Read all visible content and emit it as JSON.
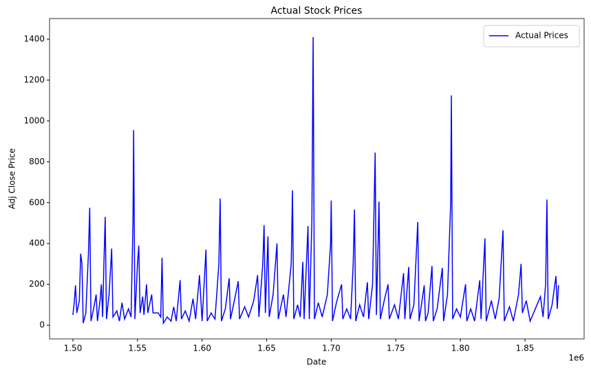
{
  "chart_data": {
    "type": "line",
    "title": "Actual Stock Prices",
    "x_label": "Date",
    "y_label": "Adj Close Price",
    "x_offset_label": "1e6",
    "x": [
      1500000,
      1501000,
      1502000,
      1503000,
      1505000,
      1506000,
      1507000,
      1508000,
      1510000,
      1512000,
      1513000,
      1514000,
      1516000,
      1518000,
      1519000,
      1521000,
      1522000,
      1523000,
      1524000,
      1525000,
      1526000,
      1528000,
      1530000,
      1531000,
      1534000,
      1536000,
      1538000,
      1540000,
      1543000,
      1545000,
      1546500,
      1547000,
      1548000,
      1550000,
      1551000,
      1552000,
      1554000,
      1555000,
      1557000,
      1558000,
      1561000,
      1562000,
      1566000,
      1568000,
      1569000,
      1570000,
      1573000,
      1576000,
      1578000,
      1580000,
      1583000,
      1584000,
      1587000,
      1590000,
      1593000,
      1595000,
      1598000,
      1600000,
      1602000,
      1603000,
      1604000,
      1607000,
      1610000,
      1613000,
      1614000,
      1615000,
      1618000,
      1621000,
      1622000,
      1625000,
      1628000,
      1629000,
      1633000,
      1636000,
      1640000,
      1643000,
      1644000,
      1647000,
      1648000,
      1649000,
      1651000,
      1652000,
      1655000,
      1658000,
      1659000,
      1663000,
      1665000,
      1669000,
      1670000,
      1671000,
      1674000,
      1676000,
      1678000,
      1679000,
      1682000,
      1683000,
      1685000,
      1686000,
      1687000,
      1690000,
      1693000,
      1697000,
      1699500,
      1700000,
      1701000,
      1704000,
      1708000,
      1709000,
      1712000,
      1715000,
      1717000,
      1718000,
      1719000,
      1722000,
      1725000,
      1728000,
      1729000,
      1732000,
      1734000,
      1735000,
      1737000,
      1738000,
      1741000,
      1744000,
      1745000,
      1749000,
      1752000,
      1756000,
      1757000,
      1760000,
      1761000,
      1764000,
      1767000,
      1768000,
      1772000,
      1773000,
      1775000,
      1778000,
      1779000,
      1782000,
      1786000,
      1787000,
      1790000,
      1792500,
      1793000,
      1794000,
      1797000,
      1800000,
      1804000,
      1805000,
      1808000,
      1811000,
      1815000,
      1816000,
      1819000,
      1820000,
      1824000,
      1827000,
      1830000,
      1833000,
      1834000,
      1838000,
      1841000,
      1845000,
      1847000,
      1848000,
      1851000,
      1854000,
      1858000,
      1862000,
      1864000,
      1866000,
      1867000,
      1868000,
      1871000,
      1874000,
      1875000,
      1876000
    ],
    "series": [
      {
        "name": "Actual Prices",
        "color": "#0000ff",
        "values": [
          50,
          110,
          195,
          60,
          120,
          350,
          300,
          10,
          60,
          350,
          575,
          20,
          80,
          150,
          20,
          120,
          200,
          40,
          300,
          530,
          30,
          150,
          375,
          40,
          70,
          20,
          110,
          30,
          80,
          40,
          500,
          955,
          30,
          300,
          390,
          60,
          140,
          50,
          200,
          60,
          150,
          60,
          60,
          40,
          330,
          10,
          40,
          20,
          90,
          20,
          220,
          30,
          70,
          20,
          130,
          30,
          245,
          20,
          250,
          370,
          20,
          60,
          30,
          300,
          620,
          20,
          80,
          230,
          30,
          120,
          215,
          30,
          90,
          40,
          120,
          245,
          40,
          300,
          490,
          60,
          435,
          40,
          150,
          400,
          30,
          150,
          40,
          300,
          660,
          30,
          100,
          40,
          310,
          30,
          485,
          30,
          500,
          1410,
          30,
          110,
          40,
          150,
          400,
          610,
          20,
          110,
          200,
          30,
          80,
          30,
          300,
          565,
          20,
          100,
          40,
          210,
          30,
          200,
          845,
          50,
          605,
          30,
          120,
          200,
          30,
          100,
          30,
          255,
          30,
          285,
          30,
          100,
          505,
          20,
          195,
          20,
          60,
          290,
          20,
          80,
          280,
          20,
          150,
          600,
          1125,
          30,
          80,
          40,
          200,
          20,
          80,
          20,
          220,
          30,
          425,
          20,
          120,
          30,
          130,
          465,
          20,
          90,
          20,
          150,
          300,
          60,
          120,
          20,
          80,
          140,
          40,
          200,
          615,
          30,
          100,
          240,
          80,
          195
        ]
      }
    ],
    "xlim": [
      1481900,
      1895800
    ],
    "ylim": [
      -67,
      1501
    ],
    "xticks": [
      {
        "value": 1500000,
        "label": "1.50"
      },
      {
        "value": 1550000,
        "label": "1.55"
      },
      {
        "value": 1600000,
        "label": "1.60"
      },
      {
        "value": 1650000,
        "label": "1.65"
      },
      {
        "value": 1700000,
        "label": "1.70"
      },
      {
        "value": 1750000,
        "label": "1.75"
      },
      {
        "value": 1800000,
        "label": "1.80"
      },
      {
        "value": 1850000,
        "label": "1.85"
      }
    ],
    "yticks": [
      0,
      200,
      400,
      600,
      800,
      1000,
      1200,
      1400
    ],
    "grid": false,
    "legend": "upper right"
  }
}
